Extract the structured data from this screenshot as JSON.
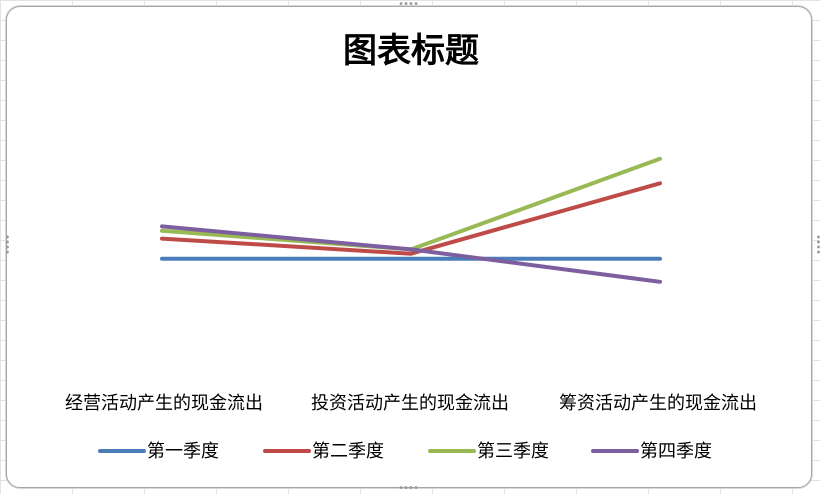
{
  "chart_data": {
    "type": "line",
    "title": "图表标题",
    "xlabel": "",
    "ylabel": "",
    "categories": [
      "经营活动产生的现金流出",
      "投资活动产生的现金流出",
      "筹资活动产生的现金流出"
    ],
    "series": [
      {
        "name": "第一季度",
        "color": "#4a7ebb",
        "values": [
          0,
          0,
          0
        ]
      },
      {
        "name": "第二季度",
        "color": "#be4b48",
        "values": [
          28,
          7,
          105
        ]
      },
      {
        "name": "第三季度",
        "color": "#98b954",
        "values": [
          39,
          13,
          139
        ]
      },
      {
        "name": "第四季度",
        "color": "#7d5fa0",
        "values": [
          45,
          13,
          -32
        ]
      }
    ],
    "ylim": [
      -120,
      200
    ],
    "grid": false,
    "axes_visible": false,
    "legend_position": "bottom"
  }
}
